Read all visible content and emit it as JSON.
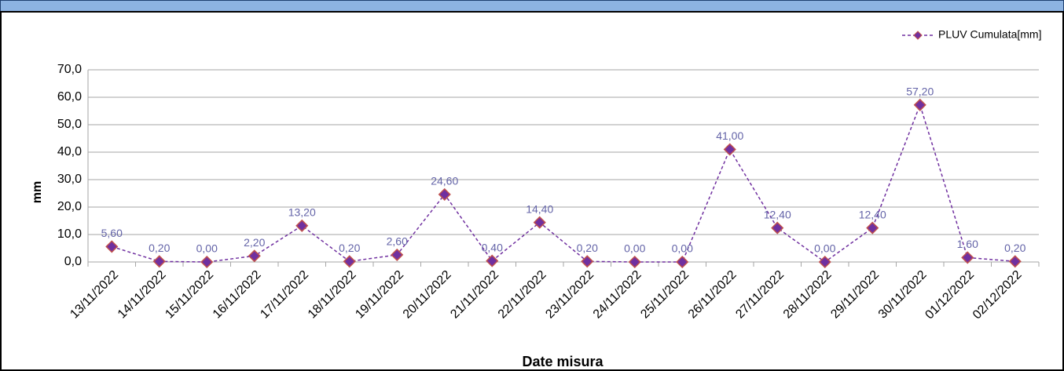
{
  "chart_data": {
    "type": "line",
    "xlabel": "Date misura",
    "ylabel": "mm",
    "categories": [
      "13/11/2022",
      "14/11/2022",
      "15/11/2022",
      "16/11/2022",
      "17/11/2022",
      "18/11/2022",
      "19/11/2022",
      "20/11/2022",
      "21/11/2022",
      "22/11/2022",
      "23/11/2022",
      "24/11/2022",
      "25/11/2022",
      "26/11/2022",
      "27/11/2022",
      "28/11/2022",
      "29/11/2022",
      "30/11/2022",
      "01/12/2022",
      "02/12/2022"
    ],
    "series": [
      {
        "name": "PLUV Cumulata[mm]",
        "color": "#7030a0",
        "marker_edge": "#c0504d",
        "values": [
          5.6,
          0.2,
          0,
          2.2,
          13.2,
          0.2,
          2.6,
          24.6,
          0.4,
          14.4,
          0.2,
          0,
          0,
          41,
          12.4,
          0,
          12.4,
          57.2,
          1.6,
          0.2
        ],
        "value_labels": [
          "5,60",
          "0,20",
          "0,00",
          "2,20",
          "13,20",
          "0,20",
          "2,60",
          "24,60",
          "0,40",
          "14,40",
          "0,20",
          "0,00",
          "0,00",
          "41,00",
          "12,40",
          "0,00",
          "12,40",
          "57,20",
          "1,60",
          "0,20"
        ]
      }
    ],
    "ylim": [
      0,
      70
    ],
    "yticks": [
      {
        "value": 0,
        "label": "0,0"
      },
      {
        "value": 10,
        "label": "10,0"
      },
      {
        "value": 20,
        "label": "20,0"
      },
      {
        "value": 30,
        "label": "30,0"
      },
      {
        "value": 40,
        "label": "40,0"
      },
      {
        "value": 50,
        "label": "50,0"
      },
      {
        "value": 60,
        "label": "60,0"
      },
      {
        "value": 70,
        "label": "70,0"
      }
    ],
    "grid": true,
    "legend": "top-right"
  }
}
